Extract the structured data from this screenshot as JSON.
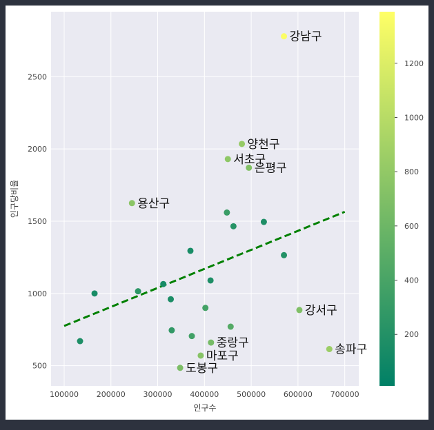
{
  "chart_data": {
    "type": "scatter",
    "xlabel": "인구수",
    "ylabel": "인구당비율",
    "xlim": [
      72000,
      730000
    ],
    "ylim": [
      360,
      2950
    ],
    "xticks": [
      100000,
      200000,
      300000,
      400000,
      500000,
      600000,
      700000
    ],
    "yticks": [
      500,
      1000,
      1500,
      2000,
      2500
    ],
    "grid": true,
    "colormap": "summer",
    "colorbar": {
      "range": [
        10,
        1390
      ],
      "ticks": [
        200,
        400,
        600,
        800,
        1000,
        1200
      ]
    },
    "colors": {
      "background": "#eaeaf2",
      "trend": "#008000",
      "frame": "#2d323e"
    },
    "trend_line": {
      "x": [
        100000,
        700000
      ],
      "y": [
        775,
        1565
      ],
      "style": "dashed"
    },
    "points": [
      {
        "x": 570000,
        "y": 2780,
        "c": 1370,
        "label": "강남구"
      },
      {
        "x": 480000,
        "y": 2035,
        "c": 820,
        "label": "양천구"
      },
      {
        "x": 450000,
        "y": 1930,
        "c": 780,
        "label": "서초구"
      },
      {
        "x": 495000,
        "y": 1870,
        "c": 720,
        "label": "은평구"
      },
      {
        "x": 245000,
        "y": 1625,
        "c": 760,
        "label": "용산구"
      },
      {
        "x": 603000,
        "y": 885,
        "c": 700,
        "label": "강서구"
      },
      {
        "x": 667000,
        "y": 615,
        "c": 850,
        "label": "송파구"
      },
      {
        "x": 414000,
        "y": 660,
        "c": 650,
        "label": "중랑구"
      },
      {
        "x": 392000,
        "y": 570,
        "c": 740,
        "label": "마포구"
      },
      {
        "x": 348000,
        "y": 485,
        "c": 680,
        "label": "도봉구"
      },
      {
        "x": 448000,
        "y": 1560,
        "c": 320,
        "label": ""
      },
      {
        "x": 462000,
        "y": 1465,
        "c": 220,
        "label": ""
      },
      {
        "x": 527000,
        "y": 1495,
        "c": 170,
        "label": ""
      },
      {
        "x": 570000,
        "y": 1265,
        "c": 200,
        "label": ""
      },
      {
        "x": 370000,
        "y": 1295,
        "c": 140,
        "label": ""
      },
      {
        "x": 413000,
        "y": 1090,
        "c": 170,
        "label": ""
      },
      {
        "x": 312000,
        "y": 1065,
        "c": 130,
        "label": ""
      },
      {
        "x": 258000,
        "y": 1015,
        "c": 250,
        "label": ""
      },
      {
        "x": 165000,
        "y": 1000,
        "c": 140,
        "label": ""
      },
      {
        "x": 328000,
        "y": 960,
        "c": 160,
        "label": ""
      },
      {
        "x": 402000,
        "y": 900,
        "c": 380,
        "label": ""
      },
      {
        "x": 330000,
        "y": 745,
        "c": 280,
        "label": ""
      },
      {
        "x": 373000,
        "y": 705,
        "c": 360,
        "label": ""
      },
      {
        "x": 456000,
        "y": 770,
        "c": 470,
        "label": ""
      },
      {
        "x": 134000,
        "y": 670,
        "c": 170,
        "label": ""
      }
    ]
  }
}
